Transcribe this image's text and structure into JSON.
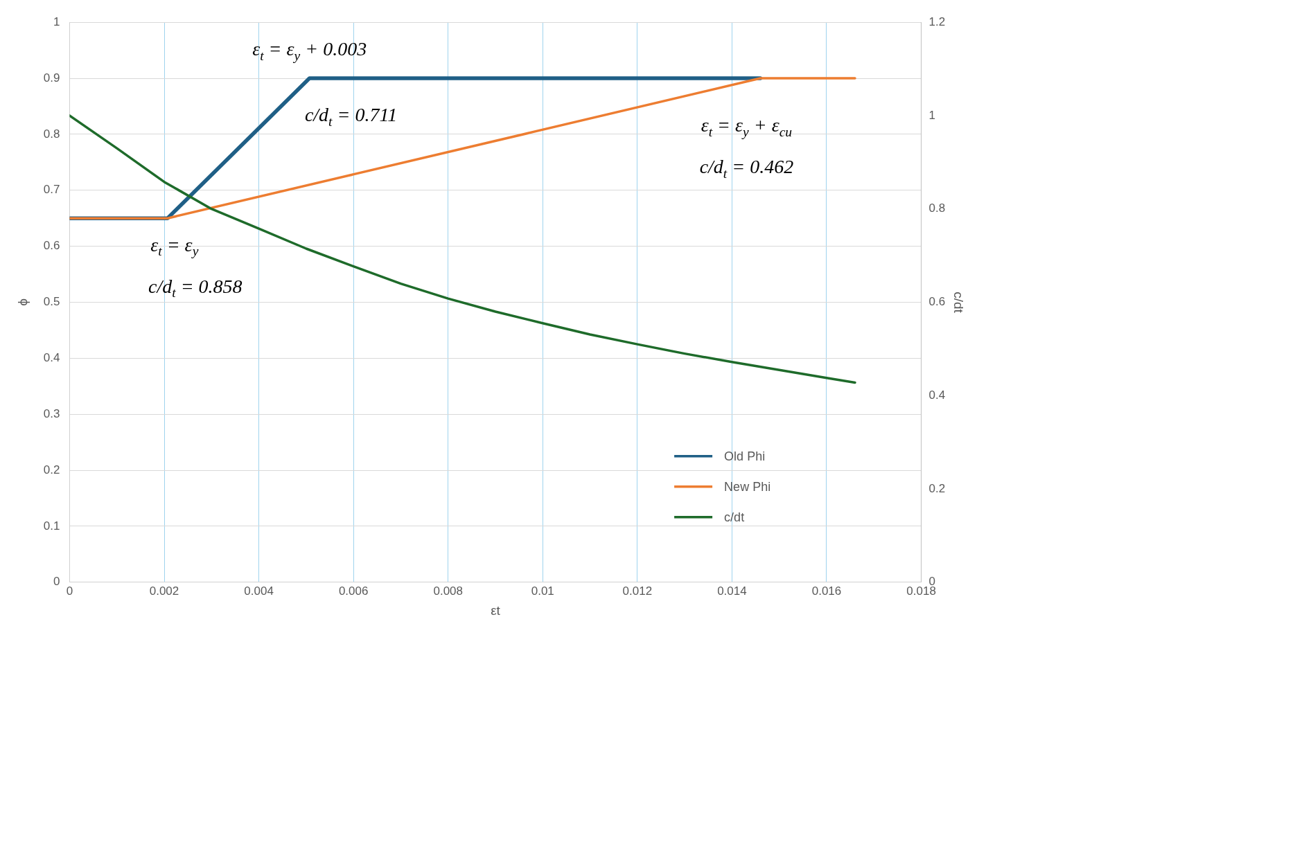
{
  "chart_data": {
    "type": "line",
    "xlabel": "εt",
    "ylabel": "ϕ",
    "y2label": "c/dt",
    "xlim": [
      0,
      0.018
    ],
    "xticks": [
      0,
      0.002,
      0.004,
      0.006,
      0.008,
      0.01,
      0.012,
      0.014,
      0.016,
      0.018
    ],
    "ylim": [
      0,
      1
    ],
    "yticks": [
      0,
      0.1,
      0.2,
      0.3,
      0.4,
      0.5,
      0.6,
      0.7,
      0.8,
      0.9,
      1
    ],
    "y2lim": [
      0,
      1.2
    ],
    "y2ticks": [
      0,
      0.2,
      0.4,
      0.6,
      0.8,
      1,
      1.2
    ],
    "grid": true,
    "legend": "bottom right",
    "line_style": "solid",
    "series": [
      {
        "name": "Old Phi",
        "color": "#1f5f86",
        "x": [
          0,
          0.00207,
          0.00507,
          0.0146
        ],
        "values": [
          0.65,
          0.65,
          0.9,
          0.9
        ]
      },
      {
        "name": "New Phi",
        "color": "#ed7d31",
        "x": [
          0,
          0.00207,
          0.0146,
          0.0166
        ],
        "values": [
          0.65,
          0.65,
          0.9,
          0.9
        ]
      },
      {
        "name": "c/dt",
        "color": "#1e6b2a",
        "axis": "y2",
        "x": [
          0,
          0.001,
          0.002,
          0.003,
          0.004,
          0.005,
          0.006,
          0.007,
          0.008,
          0.009,
          0.01,
          0.011,
          0.012,
          0.013,
          0.014,
          0.015,
          0.016,
          0.0166
        ],
        "values": [
          1.0,
          0.93,
          0.858,
          0.8,
          0.758,
          0.715,
          0.677,
          0.64,
          0.608,
          0.58,
          0.555,
          0.531,
          0.51,
          0.49,
          0.472,
          0.455,
          0.438,
          0.428
        ]
      }
    ],
    "annotations": [
      {
        "text": "ε$_{t}$ = ε$_{y}$ + 0.003",
        "x": 0.00507,
        "y": 0.9
      },
      {
        "text": "c/d$_{t}$ = 0.711",
        "x": 0.00507,
        "y": 0.9
      },
      {
        "text": "ε$_{t}$ = ε$_{y}$",
        "x": 0.00207,
        "y": 0.65
      },
      {
        "text": "c/d$_{t}$ = 0.858",
        "x": 0.00207,
        "y": 0.65
      },
      {
        "text": "ε$_{t}$ = ε$_{y}$ + ε$_{cu}$",
        "x": 0.0146,
        "y": 0.9
      },
      "c/d$_{t}$ = 0.462"
    ]
  }
}
